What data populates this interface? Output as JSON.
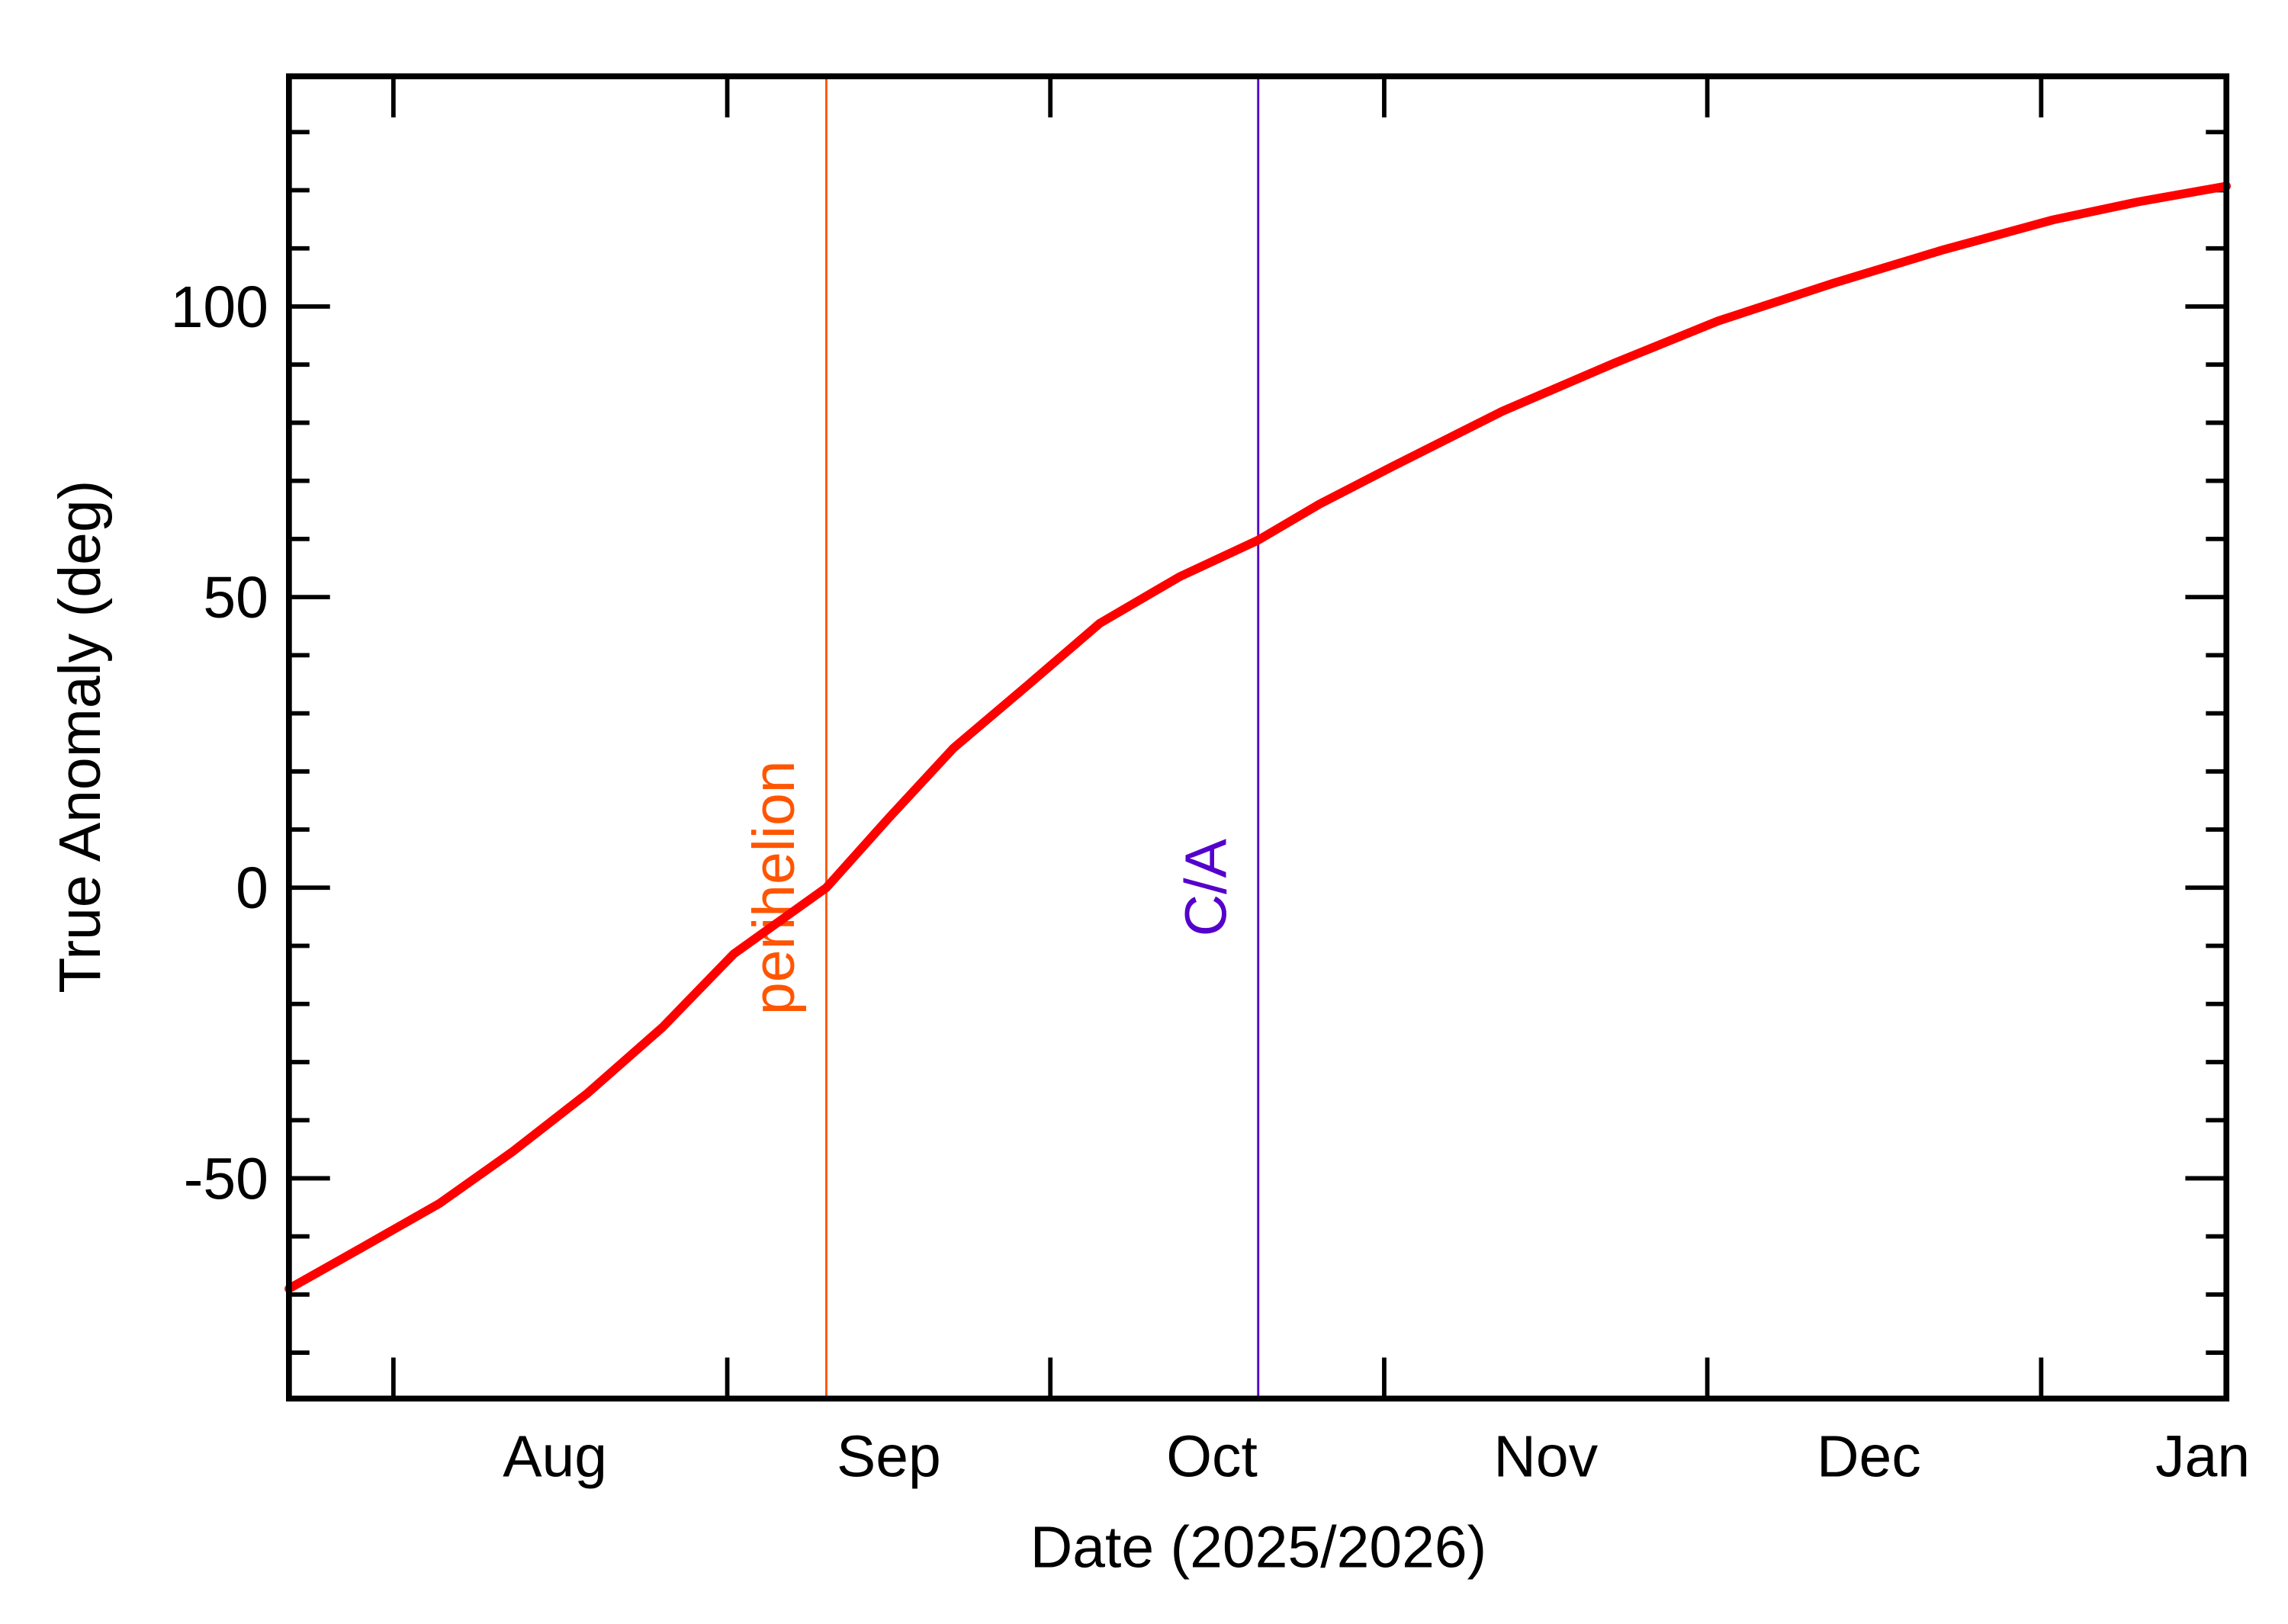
{
  "chart_data": {
    "type": "line",
    "x_label": "Date (2025/2026)",
    "y_label": "True Anomaly (deg)",
    "x": [
      203.3,
      210,
      217.3,
      224,
      231,
      238,
      244.6,
      253.2,
      259,
      265,
      272,
      278.6,
      286,
      293.3,
      299,
      305.8,
      316,
      326.3,
      336,
      346.7,
      357,
      367.1,
      375,
      383.2
    ],
    "series": [
      {
        "name": "True Anomaly",
        "color": "#ff0000",
        "values": [
          -69,
          -62,
          -54.3,
          -45.5,
          -35.4,
          -24,
          -11.4,
          0,
          12,
          24,
          35,
          45.5,
          53.5,
          59.8,
          66,
          72.5,
          82,
          90.2,
          97.5,
          104,
          109.8,
          114.9,
          118,
          120.7
        ]
      }
    ],
    "xlim": [
      203.3,
      383.2
    ],
    "ylim": [
      -87.9,
      139.6
    ],
    "xticks": [
      {
        "value": 228,
        "label": "Aug"
      },
      {
        "value": 259,
        "label": "Sep"
      },
      {
        "value": 289,
        "label": "Oct"
      },
      {
        "value": 320,
        "label": "Nov"
      },
      {
        "value": 350,
        "label": "Dec"
      },
      {
        "value": 381,
        "label": "Jan"
      }
    ],
    "x_major_ticks": [
      213,
      244,
      274,
      305,
      335,
      366
    ],
    "yticks": [
      -50,
      0,
      50,
      100
    ],
    "y_minor_ticks": [
      -80,
      -70,
      -60,
      -40,
      -30,
      -20,
      -10,
      10,
      20,
      30,
      40,
      60,
      70,
      80,
      90,
      110,
      120,
      130
    ],
    "events": [
      {
        "label": "perihelion",
        "x": 253.2,
        "color": "#ff5500"
      },
      {
        "label": "C/A",
        "x": 293.3,
        "color": "#5500cc"
      }
    ]
  }
}
